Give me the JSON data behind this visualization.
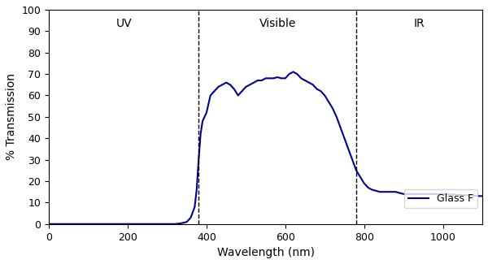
{
  "title": "",
  "xlabel": "Wavelength (nm)",
  "ylabel": "% Transmission",
  "xlim": [
    0,
    1100
  ],
  "ylim": [
    0,
    100
  ],
  "xticks": [
    0,
    200,
    400,
    600,
    800,
    1000
  ],
  "yticks": [
    0,
    10,
    20,
    30,
    40,
    50,
    60,
    70,
    80,
    90,
    100
  ],
  "uv_label": "UV",
  "visible_label": "Visible",
  "ir_label": "IR",
  "uv_boundary": 380,
  "ir_boundary": 780,
  "legend_label": "Glass F",
  "line_color": "#00008B",
  "curve_x": [
    0,
    100,
    200,
    280,
    300,
    310,
    320,
    330,
    340,
    350,
    360,
    370,
    375,
    380,
    385,
    390,
    395,
    400,
    410,
    420,
    430,
    440,
    450,
    460,
    470,
    480,
    490,
    500,
    510,
    520,
    530,
    540,
    550,
    560,
    570,
    580,
    590,
    600,
    610,
    620,
    630,
    640,
    650,
    660,
    670,
    680,
    690,
    700,
    710,
    720,
    730,
    740,
    750,
    760,
    770,
    780,
    790,
    800,
    810,
    820,
    830,
    840,
    850,
    860,
    870,
    880,
    890,
    900,
    950,
    1000,
    1050,
    1100
  ],
  "curve_y": [
    0,
    0,
    0,
    0,
    0,
    0,
    0,
    0.2,
    0.5,
    1.0,
    3,
    8,
    16,
    30,
    42,
    48,
    50,
    52,
    60,
    62,
    64,
    65,
    66,
    65,
    63,
    60,
    62,
    64,
    65,
    66,
    67,
    67,
    68,
    68,
    68,
    68.5,
    68,
    68,
    70,
    71,
    70,
    68,
    67,
    66,
    65,
    63,
    62,
    60,
    57,
    54,
    50,
    45,
    40,
    35,
    30,
    25,
    22,
    19,
    17,
    16,
    15.5,
    15,
    15,
    15,
    15,
    15,
    14.5,
    14,
    14,
    14,
    13.5,
    13
  ]
}
